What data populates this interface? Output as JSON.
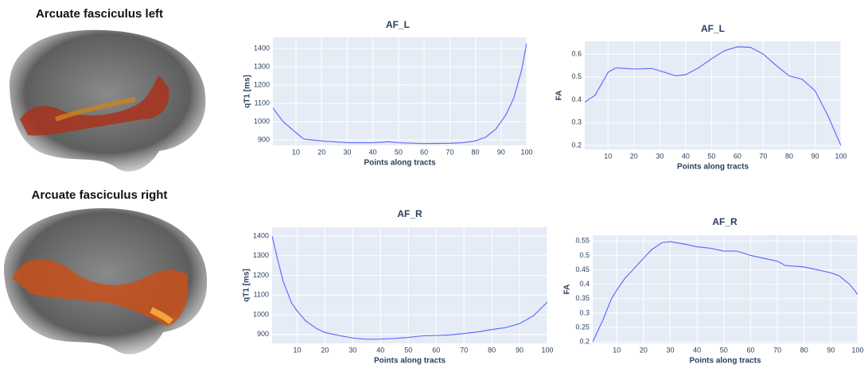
{
  "panels": [
    {
      "label": "Arcuate fasciculus left"
    },
    {
      "label": "Arcuate fasciculus right"
    }
  ],
  "chart_data": [
    {
      "type": "line",
      "title": "AF_L",
      "xlabel": "Points along tracts",
      "ylabel": "qT1 [ms]",
      "x": [
        1,
        5,
        10,
        13,
        20,
        30,
        40,
        46,
        50,
        60,
        70,
        75,
        80,
        84,
        88,
        92,
        95,
        98,
        100
      ],
      "series": [
        {
          "color": "#636efa",
          "values": [
            1075,
            1000,
            940,
            905,
            895,
            885,
            885,
            890,
            885,
            880,
            882,
            885,
            895,
            915,
            960,
            1040,
            1130,
            1280,
            1430
          ]
        }
      ],
      "xlim": [
        1,
        100
      ],
      "ylim": [
        870,
        1461
      ],
      "xticks": [
        10,
        20,
        30,
        40,
        50,
        60,
        70,
        80,
        90,
        100
      ],
      "yticks": [
        900,
        1000,
        1100,
        1200,
        1300,
        1400
      ],
      "grid": true
    },
    {
      "type": "line",
      "title": "AF_L",
      "xlabel": "Points along tracts",
      "ylabel": "FA",
      "x": [
        1,
        5,
        8,
        10,
        13,
        20,
        27,
        32,
        36,
        40,
        45,
        50,
        55,
        60,
        65,
        70,
        75,
        80,
        85,
        90,
        95,
        100
      ],
      "series": [
        {
          "color": "#636efa",
          "values": [
            0.39,
            0.42,
            0.48,
            0.52,
            0.54,
            0.535,
            0.537,
            0.52,
            0.505,
            0.51,
            0.54,
            0.58,
            0.615,
            0.632,
            0.63,
            0.6,
            0.55,
            0.505,
            0.49,
            0.44,
            0.33,
            0.2
          ]
        }
      ],
      "xlim": [
        1,
        100
      ],
      "ylim": [
        0.183,
        0.656
      ],
      "xticks": [
        10,
        20,
        30,
        40,
        50,
        60,
        70,
        80,
        90,
        100
      ],
      "yticks": [
        0.2,
        0.3,
        0.4,
        0.5,
        0.6
      ],
      "grid": true
    },
    {
      "type": "line",
      "title": "AF_R",
      "xlabel": "Points along tracts",
      "ylabel": "qT1 [ms]",
      "x": [
        1,
        3,
        5,
        8,
        10,
        13,
        17,
        20,
        25,
        30,
        35,
        40,
        45,
        50,
        55,
        60,
        65,
        70,
        75,
        80,
        85,
        90,
        95,
        100
      ],
      "series": [
        {
          "color": "#636efa",
          "values": [
            1400,
            1280,
            1170,
            1060,
            1020,
            970,
            930,
            910,
            895,
            882,
            876,
            877,
            880,
            885,
            893,
            895,
            898,
            905,
            913,
            925,
            935,
            955,
            995,
            1065
          ]
        }
      ],
      "xlim": [
        1,
        100
      ],
      "ylim": [
        855,
        1444
      ],
      "xticks": [
        10,
        20,
        30,
        40,
        50,
        60,
        70,
        80,
        90,
        100
      ],
      "yticks": [
        900,
        1000,
        1100,
        1200,
        1300,
        1400
      ],
      "grid": true
    },
    {
      "type": "line",
      "title": "AF_R",
      "xlabel": "Points along tracts",
      "ylabel": "FA",
      "x": [
        1,
        5,
        8,
        10,
        13,
        17,
        20,
        23,
        27,
        30,
        35,
        40,
        45,
        50,
        55,
        60,
        65,
        70,
        73,
        80,
        85,
        90,
        93,
        97,
        100
      ],
      "series": [
        {
          "color": "#636efa",
          "values": [
            0.2,
            0.28,
            0.35,
            0.38,
            0.42,
            0.46,
            0.49,
            0.52,
            0.545,
            0.548,
            0.54,
            0.53,
            0.525,
            0.515,
            0.515,
            0.5,
            0.49,
            0.48,
            0.465,
            0.46,
            0.45,
            0.44,
            0.43,
            0.4,
            0.365
          ]
        }
      ],
      "xlim": [
        1,
        100
      ],
      "ylim": [
        0.195,
        0.57
      ],
      "xticks": [
        10,
        20,
        30,
        40,
        50,
        60,
        70,
        80,
        90,
        100
      ],
      "yticks": [
        0.2,
        0.25,
        0.3,
        0.35,
        0.4,
        0.45,
        0.5,
        0.55
      ],
      "grid": true
    }
  ]
}
